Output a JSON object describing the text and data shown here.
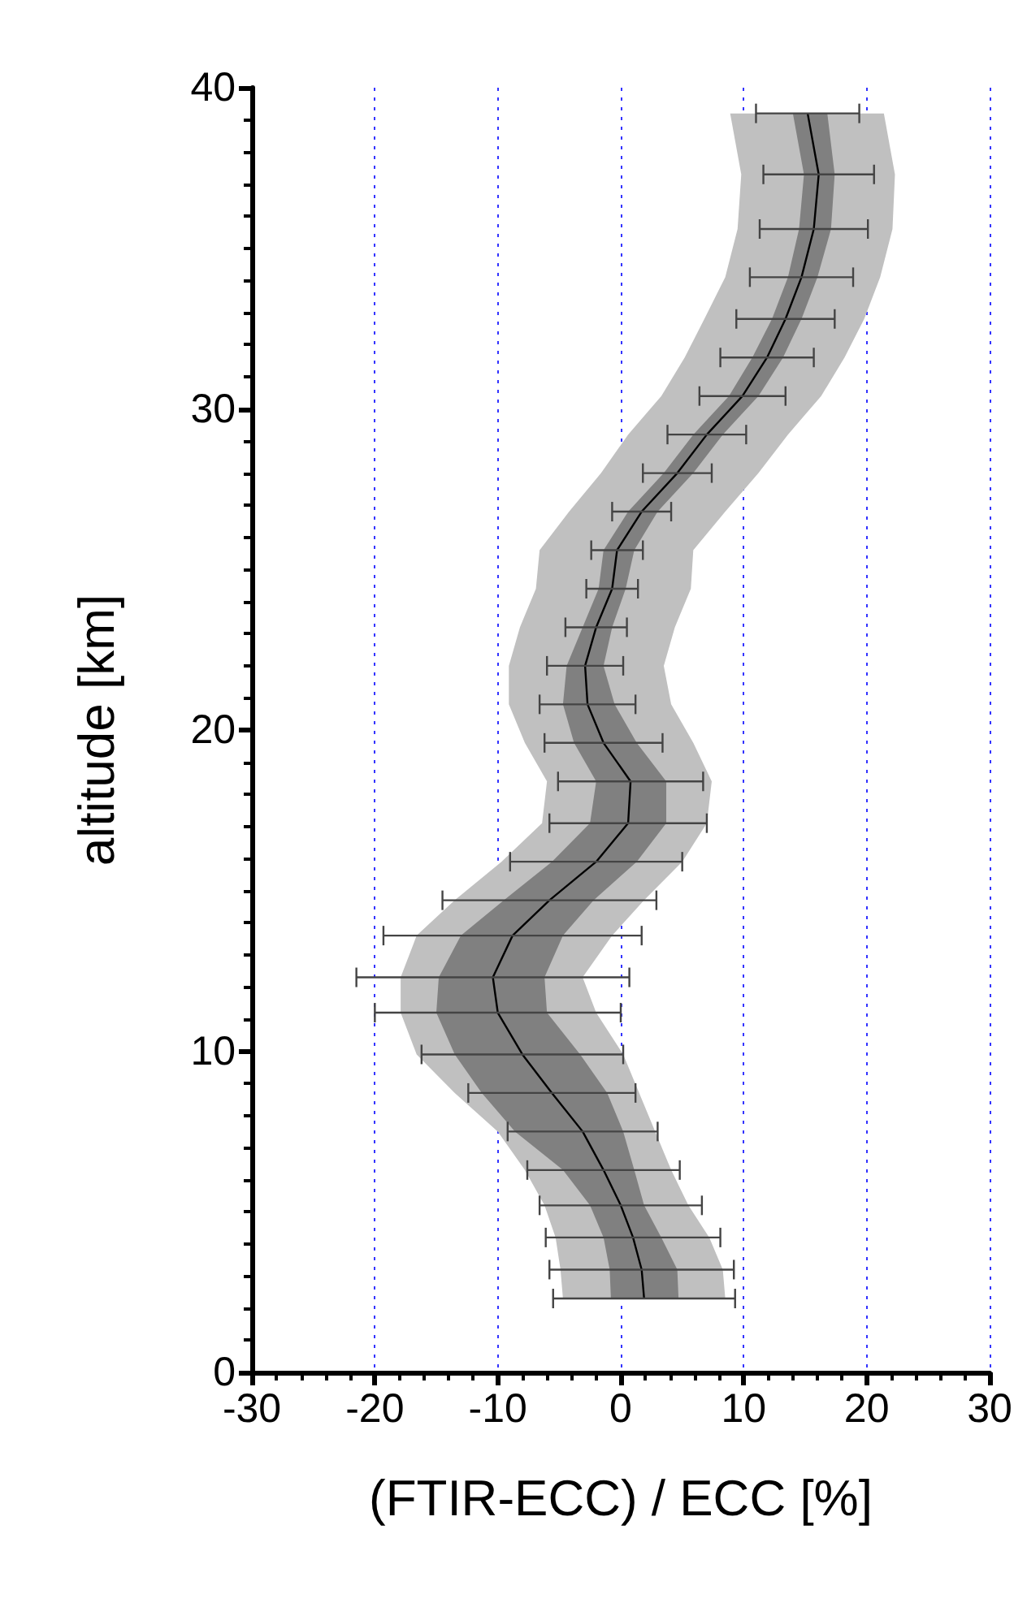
{
  "chart_data": {
    "type": "line",
    "orientation": "horizontal",
    "xlabel": "(FTIR-ECC) / ECC [%]",
    "ylabel": "altitude [km]",
    "xlim": [
      -30,
      30
    ],
    "xticks": [
      -30,
      -20,
      -10,
      0,
      10,
      20,
      30
    ],
    "ylim": [
      0,
      40
    ],
    "yticks": [
      0,
      10,
      20,
      30,
      40
    ],
    "grid": "x",
    "series": [
      {
        "color": "#c0c0c0",
        "x": [
          39.2,
          37.3,
          35.6,
          34.1,
          32.8,
          31.6,
          30.4,
          29.2,
          28.0,
          26.8,
          25.6,
          24.4,
          23.2,
          22.0,
          20.8,
          19.6,
          18.4,
          17.1,
          15.9,
          14.7,
          13.6,
          12.3,
          11.2,
          9.9,
          8.7,
          7.5,
          6.3,
          5.2,
          4.2,
          3.2,
          2.3
        ],
        "values": [
          null,
          null,
          null,
          null,
          null,
          null,
          null,
          null,
          null,
          null,
          null,
          null,
          null,
          null,
          null,
          null,
          null,
          null,
          null,
          null,
          null,
          null,
          null,
          null,
          null,
          null,
          null,
          null,
          null,
          null,
          null
        ],
        "lower": [
          8.9,
          9.8,
          9.5,
          8.5,
          6.8,
          5.2,
          3.3,
          0.6,
          -1.6,
          -4.2,
          -6.6,
          -6.9,
          -8.2,
          -9.1,
          -9.1,
          -7.8,
          -6.0,
          -6.4,
          -9.7,
          -13.5,
          -16.6,
          -17.9,
          -17.9,
          -16.6,
          -13.5,
          -10.0,
          -7.8,
          -6.2,
          -5.3,
          -4.9,
          -4.7
        ],
        "upper": [
          21.4,
          22.3,
          22.1,
          21.1,
          19.8,
          18.2,
          16.3,
          13.6,
          11.2,
          8.5,
          5.9,
          5.7,
          4.4,
          3.5,
          4.1,
          5.9,
          7.4,
          7.0,
          5.0,
          1.9,
          -0.7,
          -3.1,
          -2.0,
          0.2,
          1.5,
          2.8,
          4.1,
          5.5,
          7.2,
          8.3,
          8.5
        ]
      },
      {
        "color": "#808080",
        "x": [
          39.2,
          37.3,
          35.6,
          34.1,
          32.8,
          31.6,
          30.4,
          29.2,
          28.0,
          26.8,
          25.6,
          24.4,
          23.2,
          22.0,
          20.8,
          19.6,
          18.4,
          17.1,
          15.9,
          14.7,
          13.6,
          12.3,
          11.2,
          9.9,
          8.7,
          7.5,
          6.3,
          5.2,
          4.2,
          3.2,
          2.3
        ],
        "values": [
          null,
          null,
          null,
          null,
          null,
          null,
          null,
          null,
          null,
          null,
          null,
          null,
          null,
          null,
          null,
          null,
          null,
          null,
          null,
          null,
          null,
          null,
          null,
          null,
          null,
          null,
          null,
          null,
          null,
          null,
          null
        ],
        "lower": [
          14.0,
          14.9,
          14.5,
          13.6,
          12.3,
          10.7,
          8.8,
          5.9,
          3.5,
          0.6,
          -1.4,
          -1.8,
          -3.1,
          -4.4,
          -4.7,
          -3.8,
          -2.0,
          -2.5,
          -5.6,
          -9.5,
          -13.0,
          -14.8,
          -15.0,
          -13.5,
          -11.3,
          -8.6,
          -4.7,
          -2.5,
          -1.4,
          -0.9,
          -0.8
        ],
        "upper": [
          16.8,
          17.4,
          17.1,
          16.0,
          14.7,
          13.2,
          11.2,
          8.3,
          5.9,
          3.0,
          1.1,
          0.4,
          -0.7,
          -1.4,
          -0.5,
          1.3,
          3.7,
          3.7,
          1.3,
          -2.2,
          -4.7,
          -6.2,
          -6.0,
          -3.3,
          -1.1,
          0.2,
          1.1,
          1.9,
          3.3,
          4.6,
          4.7
        ]
      },
      {
        "color": "#000000",
        "x": [
          39.2,
          37.3,
          35.6,
          34.1,
          32.8,
          31.6,
          30.4,
          29.2,
          28.0,
          26.8,
          25.6,
          24.4,
          23.2,
          22.0,
          20.8,
          19.6,
          18.4,
          17.1,
          15.9,
          14.7,
          13.6,
          12.3,
          11.2,
          9.9,
          8.7,
          7.5,
          6.3,
          5.2,
          4.2,
          3.2,
          2.3
        ],
        "values": [
          15.2,
          16.1,
          15.7,
          14.7,
          13.4,
          11.9,
          9.9,
          7.0,
          4.6,
          1.7,
          -0.3,
          -0.7,
          -2.0,
          -2.9,
          -2.7,
          -1.4,
          0.8,
          0.6,
          -2.0,
          -5.8,
          -8.8,
          -10.4,
          -10.0,
          -8.0,
          -5.6,
          -3.1,
          -1.4,
          0.0,
          1.0,
          1.7,
          1.9
        ],
        "errors": [
          4.2,
          4.5,
          4.4,
          4.2,
          4.0,
          3.8,
          3.5,
          3.2,
          2.8,
          2.4,
          2.1,
          2.1,
          2.5,
          3.1,
          3.9,
          4.8,
          5.9,
          6.4,
          7.0,
          8.7,
          10.5,
          11.1,
          10.0,
          8.2,
          6.8,
          6.1,
          6.2,
          6.6,
          7.1,
          7.5,
          7.4
        ]
      }
    ]
  }
}
